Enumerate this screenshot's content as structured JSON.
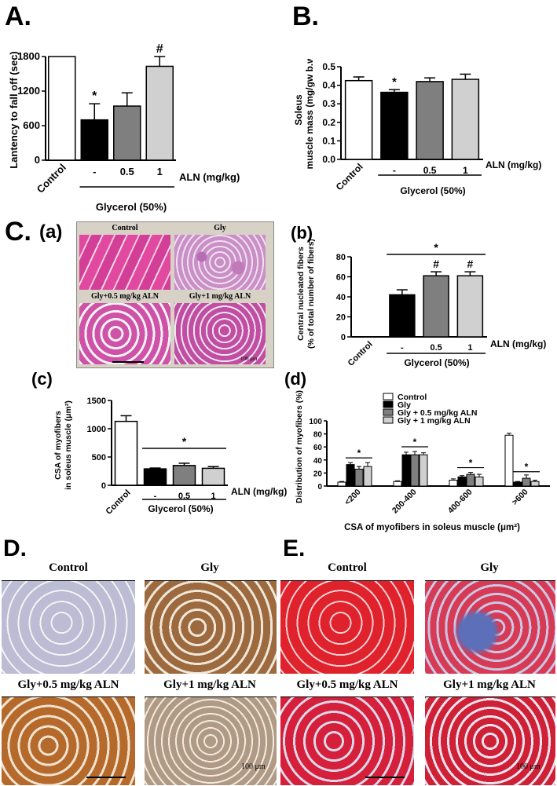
{
  "panel_letters": {
    "A": "A.",
    "B": "B.",
    "C": "C.",
    "Ca": "(a)",
    "Cb": "(b)",
    "Cc": "(c)",
    "Cd": "(d)",
    "D": "D.",
    "E": "E."
  },
  "shared": {
    "group_label": "Glycerol (50%)",
    "aln_label": "ALN (mg/kg)",
    "control": "Control",
    "dose_minus": "-",
    "dose_05": "0.5",
    "dose_1": "1"
  },
  "micrographs_c": {
    "labels": [
      "Control",
      "Gly",
      "Gly+0.5 mg/kg ALN",
      "Gly+1 mg/kg ALN"
    ],
    "scale": "100 μm"
  },
  "micrographs_d": {
    "labels": [
      "Control",
      "Gly",
      "Gly+0.5 mg/kg ALN",
      "Gly+1 mg/kg ALN"
    ],
    "scale": "100 μm"
  },
  "micrographs_e": {
    "labels": [
      "Control",
      "Gly",
      "Gly+0.5 mg/kg ALN",
      "Gly+1 mg/kg ALN"
    ],
    "scale": "100 μm"
  },
  "colors": {
    "white_bar": "#ffffff",
    "black_bar": "#000000",
    "gray_bar": "#7f7f7f",
    "light_bar": "#d0d0d0",
    "he_pink": "#d9439e",
    "ihc_brown": "#9a5a2a",
    "mt_red": "#d8252e"
  },
  "chart_data": [
    {
      "id": "A",
      "type": "bar",
      "categories": [
        "Control",
        "-",
        "0.5",
        "1"
      ],
      "values": [
        1800,
        700,
        940,
        1630
      ],
      "errors": [
        0,
        280,
        230,
        170
      ],
      "annotations": [
        "",
        "*",
        "",
        "#"
      ],
      "ylabel": "Lantency to fall off (sec)",
      "ylim": [
        0,
        1800
      ],
      "yticks": [
        0,
        600,
        1200,
        1800
      ]
    },
    {
      "id": "B",
      "type": "bar",
      "categories": [
        "Control",
        "-",
        "0.5",
        "1"
      ],
      "values": [
        0.425,
        0.362,
        0.42,
        0.432
      ],
      "errors": [
        0.02,
        0.015,
        0.02,
        0.028
      ],
      "annotations": [
        "",
        "*",
        "",
        ""
      ],
      "ylabel_lines": [
        "Soleus",
        "muscle mass (mg/gw b.w.)"
      ],
      "ylim": [
        0,
        0.5
      ],
      "yticks": [
        0.0,
        0.1,
        0.2,
        0.3,
        0.4,
        0.5
      ]
    },
    {
      "id": "Cb",
      "type": "bar",
      "categories": [
        "Control",
        "-",
        "0.5",
        "1"
      ],
      "values": [
        0,
        42,
        61,
        61
      ],
      "errors": [
        0,
        5,
        4,
        4
      ],
      "annotations": [
        "",
        "",
        "#",
        "#"
      ],
      "bracket_label": "*",
      "ylabel_lines": [
        "Central nucleated fibers",
        "(% of total number of fibers)"
      ],
      "ylim": [
        0,
        80
      ],
      "yticks": [
        0,
        20,
        40,
        60,
        80
      ]
    },
    {
      "id": "Cc",
      "type": "bar",
      "categories": [
        "Control",
        "-",
        "0.5",
        "1"
      ],
      "values": [
        1130,
        290,
        350,
        300
      ],
      "errors": [
        100,
        15,
        40,
        30
      ],
      "annotations": [
        "",
        "",
        "",
        ""
      ],
      "bracket_label": "*",
      "ylabel_lines": [
        "CSA of myofibers",
        "in soleus muscle (μm²)"
      ],
      "ylim": [
        0,
        1500
      ],
      "yticks": [
        0,
        500,
        1000,
        1500
      ]
    },
    {
      "id": "Cd",
      "type": "bar",
      "categories": [
        "<200",
        "200-400",
        "400-600",
        ">600"
      ],
      "series": [
        {
          "name": "Control",
          "values": [
            6,
            7,
            9,
            78
          ],
          "errors": [
            1,
            1,
            2,
            3
          ]
        },
        {
          "name": "Gly",
          "values": [
            33,
            48,
            14,
            6
          ],
          "errors": [
            3,
            4,
            2,
            1
          ]
        },
        {
          "name": "Gly + 0.5 mg/kg ALN",
          "values": [
            26,
            48,
            18,
            12
          ],
          "errors": [
            4,
            5,
            3,
            5
          ]
        },
        {
          "name": "Gly + 1 mg/kg ALN",
          "values": [
            30,
            48,
            14,
            7
          ],
          "errors": [
            6,
            3,
            4,
            2
          ]
        }
      ],
      "annotations": [
        "*",
        "*",
        "*",
        "*"
      ],
      "ylabel": "Distribution of myofibers (%)",
      "xlabel": "CSA of myofibers in soleus muscle (μm²)",
      "ylim": [
        0,
        100
      ],
      "yticks": [
        0,
        20,
        40,
        60,
        80,
        100
      ]
    }
  ]
}
